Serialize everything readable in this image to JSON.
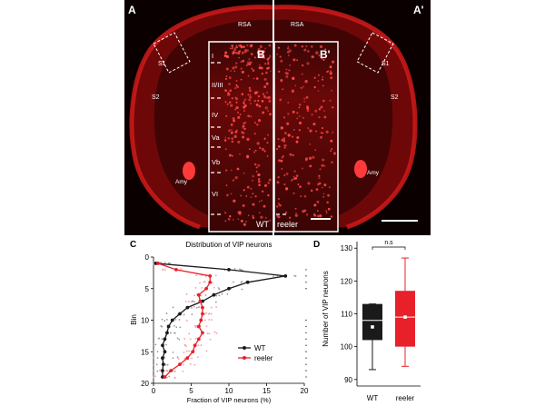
{
  "panels": {
    "A": "A",
    "A_prime": "A'",
    "B": "B",
    "B_prime": "B'",
    "C": "C",
    "D": "D"
  },
  "brain_labels": {
    "rsa_left": "RSA",
    "rsa_right": "RSA",
    "s1_left": "S1",
    "s1_right": "S1",
    "s2_left": "S2",
    "s2_right": "S2",
    "amy_left": "Amy",
    "amy_right": "Amy",
    "wt": "WT",
    "reeler": "reeler"
  },
  "layers": [
    "I",
    "II/III",
    "IV",
    "Va",
    "Vb",
    "VI"
  ],
  "colors": {
    "background": "#0a0000",
    "tissue": "#b01010",
    "wt": "#1a1a1a",
    "reeler": "#e8202a"
  },
  "chart_data": [
    {
      "type": "line",
      "title": "Distribution of  VIP neurons",
      "xlabel": "Fraction of VIP neurons (%)",
      "ylabel": "Bin",
      "xlim": [
        0,
        20
      ],
      "ylim": [
        20,
        0
      ],
      "x_ticks": [
        "0",
        "5",
        "10",
        "15",
        "20"
      ],
      "y_ticks": [
        "0",
        "5",
        "10",
        "15",
        "20"
      ],
      "legend": [
        "WT",
        "reeler"
      ],
      "series": [
        {
          "name": "WT",
          "bin": [
            1,
            2,
            3,
            4,
            5,
            6,
            7,
            8,
            9,
            10,
            11,
            12,
            13,
            14,
            15,
            16,
            17,
            18,
            19
          ],
          "values": [
            0.3,
            10,
            17.5,
            12.5,
            10,
            8,
            6.5,
            4.5,
            3.5,
            2.5,
            2,
            1.8,
            1.5,
            1.2,
            1.5,
            1.2,
            1.3,
            1.2,
            1.2
          ]
        },
        {
          "name": "reeler",
          "bin": [
            1,
            2,
            3,
            4,
            5,
            6,
            7,
            8,
            9,
            10,
            11,
            12,
            13,
            14,
            15,
            16,
            17,
            18,
            19
          ],
          "values": [
            0.6,
            3,
            7.5,
            7.5,
            7,
            6,
            6.2,
            6.5,
            6.5,
            6.3,
            6,
            6.5,
            6,
            5.5,
            5.2,
            4.5,
            3.5,
            2.3,
            1.5
          ]
        }
      ],
      "significance_bins_top": [
        2,
        3,
        4,
        5
      ],
      "significance_bins_bottom": [
        10,
        11,
        12,
        13,
        14,
        15,
        16,
        17,
        18,
        19
      ]
    },
    {
      "type": "box",
      "ylabel": "Number of VIP neurons",
      "ylim": [
        88,
        132
      ],
      "y_ticks": [
        "90",
        "100",
        "110",
        "120",
        "130"
      ],
      "categories": [
        "WT",
        "reeler"
      ],
      "boxes": [
        {
          "name": "WT",
          "min": 93,
          "q1": 102,
          "median": 108,
          "q3": 113,
          "max": 113,
          "mean": 106
        },
        {
          "name": "reeler",
          "min": 94,
          "q1": 100,
          "median": 109,
          "q3": 117,
          "max": 127,
          "mean": 109
        }
      ],
      "significance": "n.s"
    }
  ]
}
